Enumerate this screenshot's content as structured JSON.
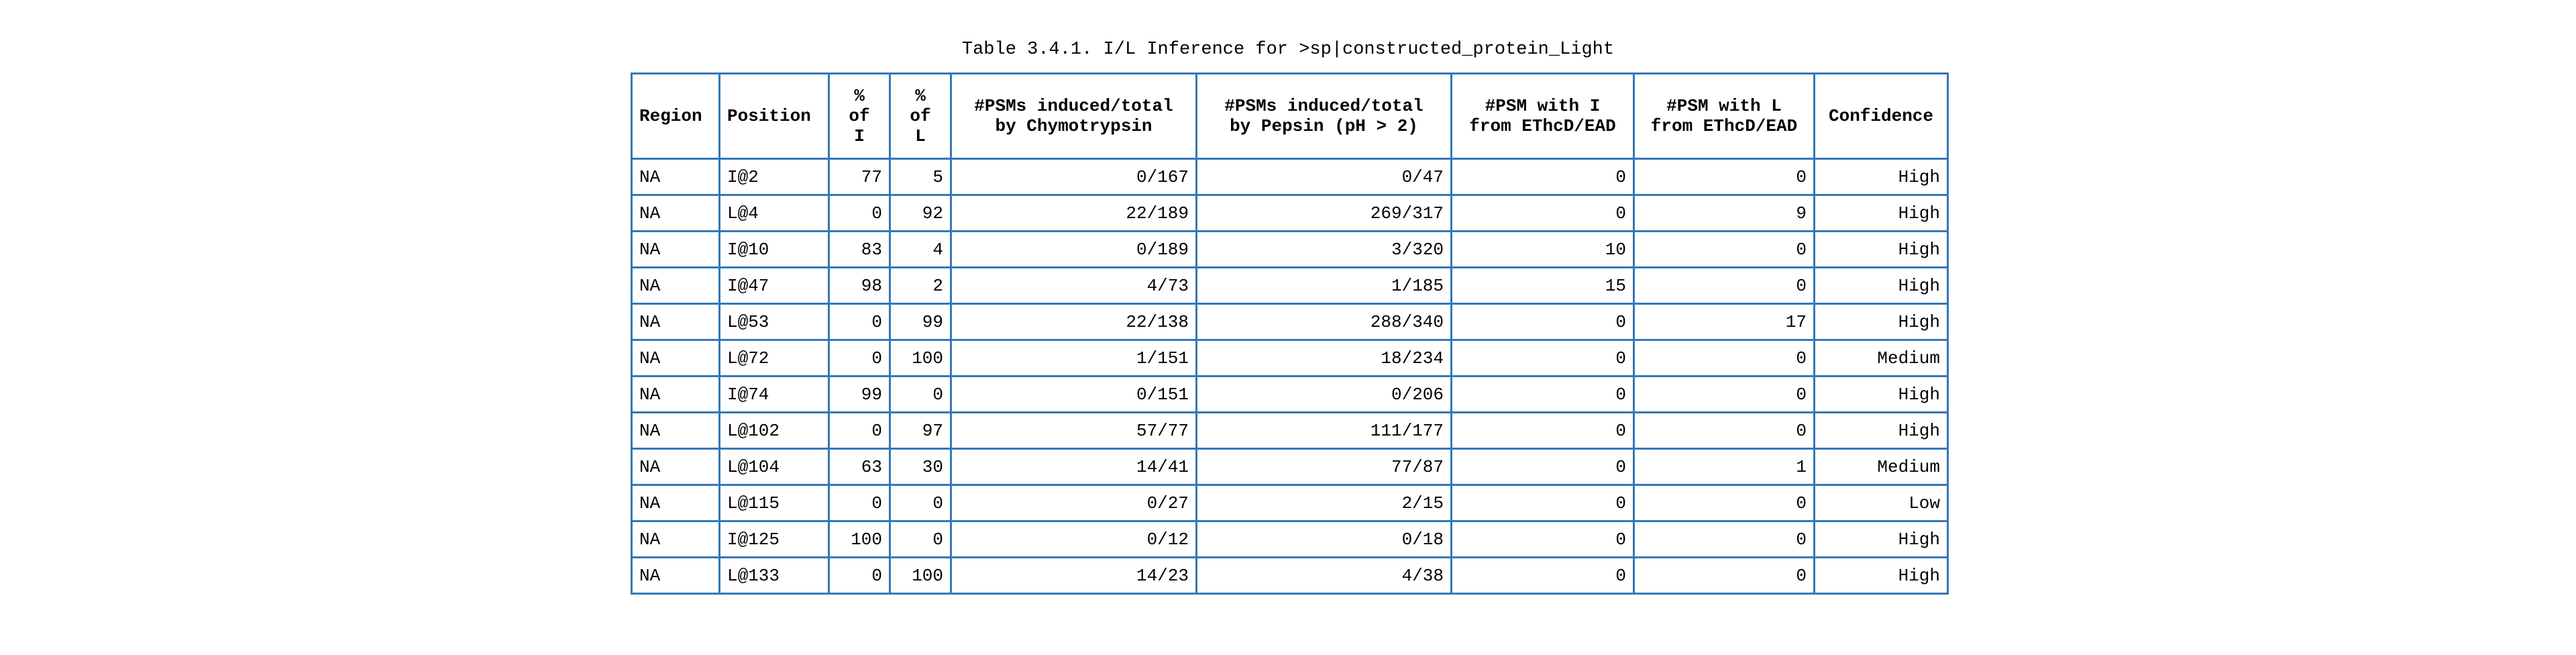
{
  "title": "Table 3.4.1. I/L Inference for >sp|constructed_protein_Light",
  "table": {
    "headers": [
      "Region",
      "Position",
      "%\nof\nI",
      "%\nof\nL",
      "#PSMs induced/total\nby Chymotrypsin",
      "#PSMs induced/total\nby Pepsin (pH > 2)",
      "#PSM with I\nfrom EThcD/EAD",
      "#PSM with L\nfrom EThcD/EAD",
      "Confidence"
    ],
    "rows": [
      [
        "NA",
        "I@2",
        "77",
        "5",
        "0/167",
        "0/47",
        "0",
        "0",
        "High"
      ],
      [
        "NA",
        "L@4",
        "0",
        "92",
        "22/189",
        "269/317",
        "0",
        "9",
        "High"
      ],
      [
        "NA",
        "I@10",
        "83",
        "4",
        "0/189",
        "3/320",
        "10",
        "0",
        "High"
      ],
      [
        "NA",
        "I@47",
        "98",
        "2",
        "4/73",
        "1/185",
        "15",
        "0",
        "High"
      ],
      [
        "NA",
        "L@53",
        "0",
        "99",
        "22/138",
        "288/340",
        "0",
        "17",
        "High"
      ],
      [
        "NA",
        "L@72",
        "0",
        "100",
        "1/151",
        "18/234",
        "0",
        "0",
        "Medium"
      ],
      [
        "NA",
        "I@74",
        "99",
        "0",
        "0/151",
        "0/206",
        "0",
        "0",
        "High"
      ],
      [
        "NA",
        "L@102",
        "0",
        "97",
        "57/77",
        "111/177",
        "0",
        "0",
        "High"
      ],
      [
        "NA",
        "L@104",
        "63",
        "30",
        "14/41",
        "77/87",
        "0",
        "1",
        "Medium"
      ],
      [
        "NA",
        "L@115",
        "0",
        "0",
        "0/27",
        "2/15",
        "0",
        "0",
        "Low"
      ],
      [
        "NA",
        "I@125",
        "100",
        "0",
        "0/12",
        "0/18",
        "0",
        "0",
        "High"
      ],
      [
        "NA",
        "L@133",
        "0",
        "100",
        "14/23",
        "4/38",
        "0",
        "0",
        "High"
      ]
    ]
  }
}
